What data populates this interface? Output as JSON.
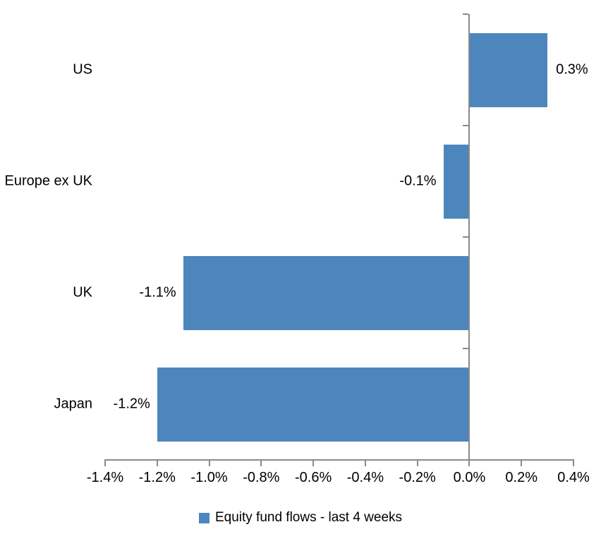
{
  "chart_data": {
    "type": "bar",
    "orientation": "horizontal",
    "categories": [
      "US",
      "Europe ex UK",
      "UK",
      "Japan"
    ],
    "values": [
      0.3,
      -0.1,
      -1.1,
      -1.2
    ],
    "data_labels": [
      "0.3%",
      "-0.1%",
      "-1.1%",
      "-1.2%"
    ],
    "legend": "Equity fund flows - last 4 weeks",
    "legend_position": "bottom",
    "xlim": [
      -1.4,
      0.4
    ],
    "x_tick_step": 0.2,
    "x_tick_labels": [
      "-1.4%",
      "-1.2%",
      "-1.0%",
      "-0.8%",
      "-0.6%",
      "-0.4%",
      "-0.2%",
      "0.0%",
      "0.2%",
      "0.4%"
    ],
    "grid": false,
    "bar_color": "#4D86BC",
    "axis_color": "#8A8A8A",
    "text_color": "#000000",
    "background_color": "#ffffff"
  }
}
